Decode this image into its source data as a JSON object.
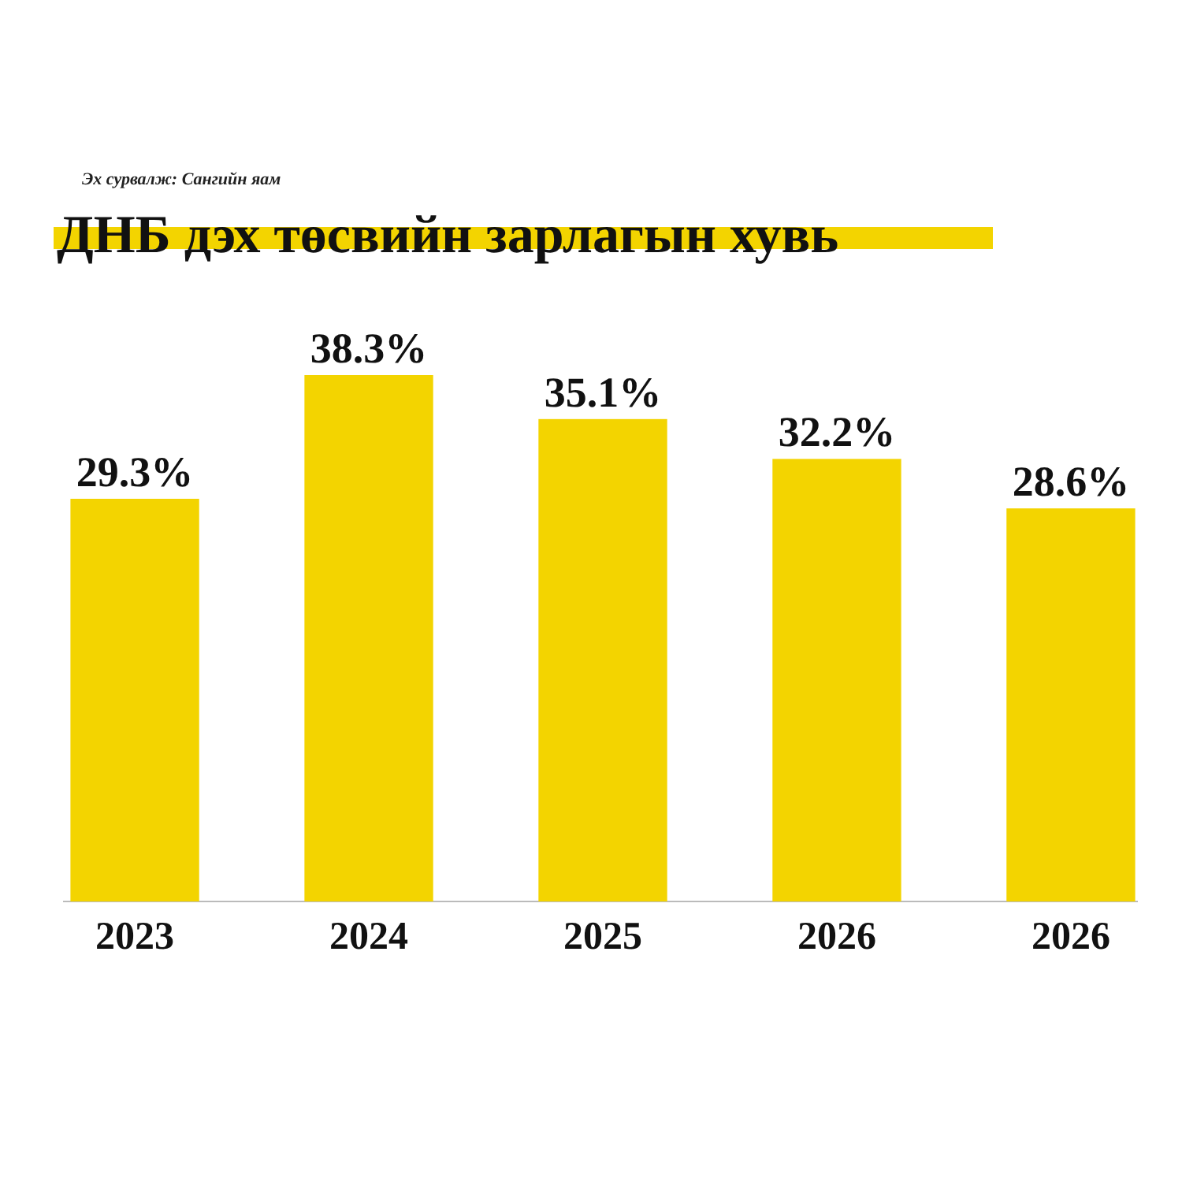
{
  "chart_data": {
    "type": "bar",
    "title": "ДНБ дэх төсвийн зарлагын хувь",
    "annotations": [
      "Эх сурвалж: Сангийн яам"
    ],
    "categories": [
      "2023",
      "2024",
      "2025",
      "2026",
      "2026"
    ],
    "values": [
      29.3,
      38.3,
      35.1,
      32.2,
      28.6
    ],
    "value_labels": [
      "29.3%",
      "38.3%",
      "35.1%",
      "32.2%",
      "28.6%"
    ],
    "color": "#f3d400"
  }
}
